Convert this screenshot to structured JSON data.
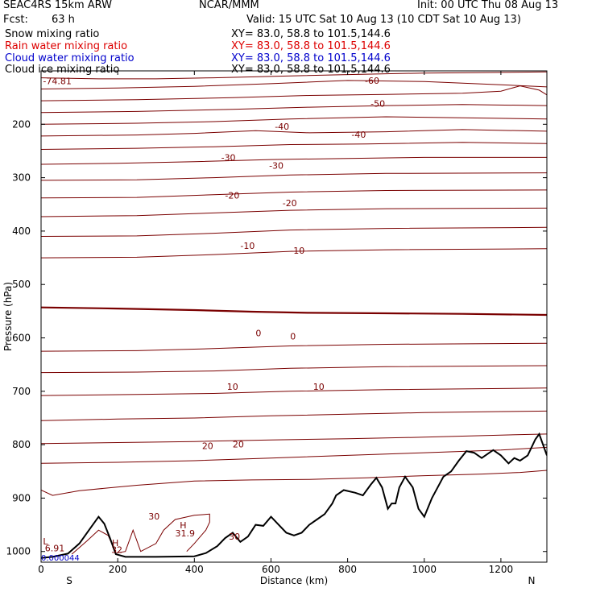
{
  "header": {
    "model": "SEAC4RS 15km ARW",
    "org": "NCAR/MMM",
    "init": "Init: 00 UTC Thu 08 Aug 13",
    "fcst_label": "Fcst:",
    "fcst_value": "63 h",
    "valid": "Valid: 15 UTC Sat 10 Aug 13 (10 CDT Sat 10 Aug 13)"
  },
  "fields": [
    {
      "name": "Snow mixing ratio",
      "xy": "XY=  83.0, 58.8 to 101.5,144.6",
      "color": "#000000"
    },
    {
      "name": "Rain water mixing ratio",
      "xy": "XY=  83.0, 58.8 to 101.5,144.6",
      "color": "#dd0000"
    },
    {
      "name": "Cloud water mixing ratio",
      "xy": "XY=  83.0, 58.8 to 101.5,144.6",
      "color": "#0000cc"
    },
    {
      "name": "Cloud ice mixing ratio",
      "xy": "XY=  83.0, 58.8 to 101.5,144.6",
      "color": "#000000"
    }
  ],
  "colors": {
    "contour": "#7a0000",
    "terrain": "#000000",
    "min_label": "#0000cc"
  },
  "chart_data": {
    "type": "line",
    "title": "",
    "xlabel": "Distance (km)",
    "ylabel": "Pressure (hPa)",
    "xlim": [
      0,
      1320
    ],
    "ylim": [
      100,
      1020
    ],
    "y_scale": "linear, inverted",
    "x_ticks": [
      0,
      200,
      400,
      600,
      800,
      1000,
      1200
    ],
    "y_ticks": [
      200,
      300,
      400,
      500,
      600,
      700,
      800,
      900,
      1000
    ],
    "x_ticks_labels": [
      "0",
      "200",
      "400",
      "600",
      "800",
      "1000",
      "1200"
    ],
    "y_ticks_labels": [
      "200",
      "300",
      "400",
      "500",
      "600",
      "700",
      "800",
      "900",
      "1000"
    ],
    "south_label": "S",
    "north_label": "N",
    "contour_series": [
      {
        "value": -70,
        "points": [
          [
            0,
            113
          ],
          [
            150,
            115
          ],
          [
            300,
            115
          ],
          [
            450,
            113
          ],
          [
            620,
            110
          ],
          [
            800,
            107
          ],
          [
            1000,
            104
          ],
          [
            1320,
            102
          ]
        ]
      },
      {
        "value": -60,
        "points": [
          [
            0,
            134
          ],
          [
            200,
            132
          ],
          [
            400,
            129
          ],
          [
            600,
            124
          ],
          [
            800,
            118
          ],
          [
            1000,
            120
          ],
          [
            1200,
            126
          ],
          [
            1320,
            130
          ]
        ]
      },
      {
        "value": -55,
        "points": [
          [
            0,
            156
          ],
          [
            250,
            154
          ],
          [
            500,
            150
          ],
          [
            700,
            146
          ],
          [
            900,
            144
          ],
          [
            1100,
            142
          ],
          [
            1200,
            138
          ],
          [
            1250,
            128
          ],
          [
            1300,
            136
          ],
          [
            1320,
            145
          ]
        ]
      },
      {
        "value": -50,
        "points": [
          [
            0,
            178
          ],
          [
            250,
            176
          ],
          [
            500,
            172
          ],
          [
            700,
            168
          ],
          [
            900,
            165
          ],
          [
            1100,
            163
          ],
          [
            1320,
            165
          ]
        ]
      },
      {
        "value": -45,
        "points": [
          [
            0,
            200
          ],
          [
            250,
            198
          ],
          [
            450,
            195
          ],
          [
            650,
            190
          ],
          [
            900,
            186
          ],
          [
            1100,
            188
          ],
          [
            1320,
            190
          ]
        ]
      },
      {
        "value": -40,
        "points": [
          [
            0,
            222
          ],
          [
            250,
            220
          ],
          [
            400,
            217
          ],
          [
            560,
            212
          ],
          [
            700,
            216
          ],
          [
            900,
            214
          ],
          [
            1100,
            210
          ],
          [
            1320,
            213
          ]
        ]
      },
      {
        "value": -35,
        "points": [
          [
            0,
            247
          ],
          [
            250,
            245
          ],
          [
            450,
            242
          ],
          [
            650,
            238
          ],
          [
            850,
            237
          ],
          [
            1100,
            234
          ],
          [
            1320,
            236
          ]
        ]
      },
      {
        "value": -30,
        "points": [
          [
            0,
            275
          ],
          [
            200,
            273
          ],
          [
            400,
            270
          ],
          [
            600,
            266
          ],
          [
            800,
            264
          ],
          [
            1000,
            262
          ],
          [
            1320,
            262
          ]
        ]
      },
      {
        "value": -25,
        "points": [
          [
            0,
            305
          ],
          [
            250,
            304
          ],
          [
            450,
            300
          ],
          [
            650,
            295
          ],
          [
            900,
            292
          ],
          [
            1320,
            291
          ]
        ]
      },
      {
        "value": -20,
        "points": [
          [
            0,
            338
          ],
          [
            250,
            337
          ],
          [
            450,
            332
          ],
          [
            650,
            327
          ],
          [
            900,
            324
          ],
          [
            1320,
            323
          ]
        ]
      },
      {
        "value": -15,
        "points": [
          [
            0,
            373
          ],
          [
            250,
            371
          ],
          [
            450,
            366
          ],
          [
            650,
            361
          ],
          [
            900,
            358
          ],
          [
            1320,
            357
          ]
        ]
      },
      {
        "value": -10,
        "points": [
          [
            0,
            410
          ],
          [
            250,
            409
          ],
          [
            450,
            404
          ],
          [
            650,
            398
          ],
          [
            900,
            395
          ],
          [
            1320,
            393
          ]
        ]
      },
      {
        "value": -5,
        "points": [
          [
            0,
            450
          ],
          [
            250,
            449
          ],
          [
            450,
            444
          ],
          [
            650,
            438
          ],
          [
            900,
            435
          ],
          [
            1320,
            433
          ]
        ]
      },
      {
        "value": 0,
        "points": [
          [
            0,
            543
          ],
          [
            200,
            545
          ],
          [
            400,
            548
          ],
          [
            550,
            551
          ],
          [
            700,
            553
          ],
          [
            900,
            554
          ],
          [
            1100,
            555
          ],
          [
            1320,
            557
          ]
        ],
        "bold": true
      },
      {
        "value": 5,
        "points": [
          [
            0,
            625
          ],
          [
            250,
            624
          ],
          [
            450,
            620
          ],
          [
            650,
            615
          ],
          [
            900,
            612
          ],
          [
            1320,
            610
          ]
        ]
      },
      {
        "value": 10,
        "points": [
          [
            0,
            665
          ],
          [
            250,
            664
          ],
          [
            450,
            662
          ],
          [
            650,
            657
          ],
          [
            900,
            654
          ],
          [
            1320,
            652
          ]
        ]
      },
      {
        "value": 15,
        "points": [
          [
            0,
            708
          ],
          [
            250,
            706
          ],
          [
            450,
            704
          ],
          [
            650,
            700
          ],
          [
            900,
            697
          ],
          [
            1320,
            694
          ]
        ]
      },
      {
        "value": 20,
        "points": [
          [
            0,
            755
          ],
          [
            200,
            752
          ],
          [
            400,
            750
          ],
          [
            600,
            746
          ],
          [
            800,
            743
          ],
          [
            1000,
            740
          ],
          [
            1200,
            738
          ],
          [
            1320,
            737
          ]
        ]
      },
      {
        "value": 22,
        "points": [
          [
            0,
            798
          ],
          [
            200,
            796
          ],
          [
            400,
            794
          ],
          [
            600,
            791
          ],
          [
            800,
            789
          ],
          [
            1000,
            786
          ],
          [
            1200,
            782
          ],
          [
            1320,
            780
          ]
        ]
      },
      {
        "value": 24,
        "points": [
          [
            0,
            835
          ],
          [
            200,
            833
          ],
          [
            400,
            830
          ],
          [
            600,
            825
          ],
          [
            800,
            820
          ],
          [
            1000,
            815
          ],
          [
            1200,
            810
          ],
          [
            1320,
            805
          ]
        ]
      },
      {
        "value": 26,
        "points": [
          [
            0,
            885
          ],
          [
            30,
            895
          ],
          [
            100,
            886
          ],
          [
            250,
            876
          ],
          [
            400,
            868
          ],
          [
            550,
            866
          ],
          [
            700,
            865
          ],
          [
            850,
            862
          ],
          [
            1000,
            858
          ],
          [
            1150,
            855
          ],
          [
            1250,
            852
          ],
          [
            1320,
            848
          ]
        ]
      }
    ],
    "contour_labels": [
      {
        "text": "-74.81",
        "x": 5,
        "y": 125
      },
      {
        "text": "-60",
        "x": 845,
        "y": 124
      },
      {
        "text": "-50",
        "x": 860,
        "y": 167
      },
      {
        "text": "-40",
        "x": 610,
        "y": 210
      },
      {
        "text": "-40",
        "x": 810,
        "y": 225
      },
      {
        "text": "-30",
        "x": 470,
        "y": 268
      },
      {
        "text": "-30",
        "x": 595,
        "y": 283
      },
      {
        "text": "-20",
        "x": 480,
        "y": 339
      },
      {
        "text": "-20",
        "x": 630,
        "y": 353
      },
      {
        "text": "-10",
        "x": 520,
        "y": 433
      },
      {
        "text": "-10",
        "x": 650,
        "y": 442
      },
      {
        "text": "0",
        "x": 560,
        "y": 597
      },
      {
        "text": "0",
        "x": 650,
        "y": 603
      },
      {
        "text": "10",
        "x": 485,
        "y": 697
      },
      {
        "text": "10",
        "x": 710,
        "y": 697
      },
      {
        "text": "20",
        "x": 420,
        "y": 808
      },
      {
        "text": "20",
        "x": 500,
        "y": 805
      },
      {
        "text": "30",
        "x": 280,
        "y": 940
      },
      {
        "text": "30",
        "x": 490,
        "y": 978
      },
      {
        "text": "H",
        "x": 362,
        "y": 957
      },
      {
        "text": "31.9",
        "x": 350,
        "y": 972
      },
      {
        "text": "H",
        "x": 185,
        "y": 990
      },
      {
        "text": "32",
        "x": 183,
        "y": 1003
      },
      {
        "text": "L",
        "x": 5,
        "y": 987
      },
      {
        "text": "6.91",
        "x": 10,
        "y": 1000
      }
    ],
    "min_label": {
      "text": "0.000044",
      "x": 0,
      "y": 1008
    },
    "warm_contour_30": [
      [
        80,
        1005
      ],
      [
        120,
        980
      ],
      [
        150,
        960
      ],
      [
        175,
        970
      ],
      [
        195,
        1003
      ],
      [
        220,
        1000
      ],
      [
        240,
        960
      ],
      [
        260,
        1000
      ],
      [
        300,
        985
      ],
      [
        320,
        960
      ],
      [
        350,
        940
      ],
      [
        400,
        932
      ],
      [
        440,
        930
      ],
      [
        440,
        945
      ],
      [
        430,
        960
      ],
      [
        400,
        985
      ],
      [
        380,
        1000
      ]
    ],
    "terrain": [
      [
        0,
        1012
      ],
      [
        30,
        1010
      ],
      [
        70,
        1004
      ],
      [
        100,
        985
      ],
      [
        130,
        955
      ],
      [
        150,
        935
      ],
      [
        165,
        948
      ],
      [
        180,
        975
      ],
      [
        195,
        1005
      ],
      [
        220,
        1010
      ],
      [
        300,
        1010
      ],
      [
        400,
        1009
      ],
      [
        430,
        1003
      ],
      [
        460,
        990
      ],
      [
        480,
        975
      ],
      [
        500,
        965
      ],
      [
        520,
        982
      ],
      [
        540,
        972
      ],
      [
        560,
        950
      ],
      [
        580,
        952
      ],
      [
        600,
        935
      ],
      [
        620,
        950
      ],
      [
        640,
        965
      ],
      [
        660,
        970
      ],
      [
        680,
        965
      ],
      [
        700,
        950
      ],
      [
        720,
        940
      ],
      [
        740,
        930
      ],
      [
        760,
        910
      ],
      [
        770,
        895
      ],
      [
        790,
        885
      ],
      [
        820,
        890
      ],
      [
        840,
        895
      ],
      [
        860,
        875
      ],
      [
        875,
        862
      ],
      [
        890,
        880
      ],
      [
        905,
        920
      ],
      [
        915,
        910
      ],
      [
        925,
        910
      ],
      [
        935,
        880
      ],
      [
        950,
        860
      ],
      [
        970,
        880
      ],
      [
        985,
        920
      ],
      [
        1000,
        935
      ],
      [
        1020,
        900
      ],
      [
        1035,
        880
      ],
      [
        1050,
        860
      ],
      [
        1070,
        850
      ],
      [
        1090,
        830
      ],
      [
        1110,
        812
      ],
      [
        1130,
        815
      ],
      [
        1150,
        825
      ],
      [
        1170,
        815
      ],
      [
        1180,
        810
      ],
      [
        1200,
        820
      ],
      [
        1220,
        835
      ],
      [
        1235,
        825
      ],
      [
        1250,
        830
      ],
      [
        1270,
        820
      ],
      [
        1290,
        790
      ],
      [
        1300,
        780
      ],
      [
        1310,
        800
      ],
      [
        1320,
        820
      ]
    ]
  }
}
